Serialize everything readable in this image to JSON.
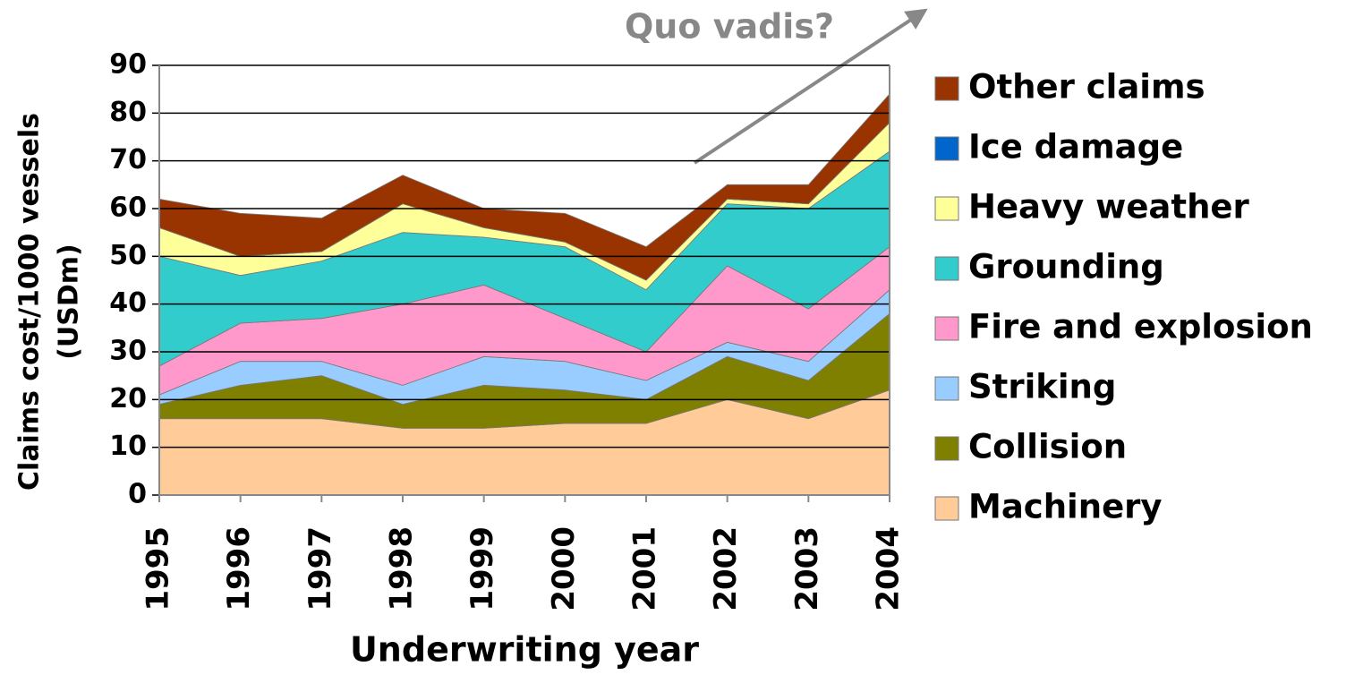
{
  "chart_data": {
    "type": "stacked_area",
    "annotation": "Quo vadis?",
    "y_label": [
      "Claims cost/1000 vessels",
      "(USDm)"
    ],
    "x_label": "Underwriting year",
    "categories": [
      "1995",
      "1996",
      "1997",
      "1998",
      "1999",
      "2000",
      "2001",
      "2002",
      "2003",
      "2004"
    ],
    "ylim": [
      0,
      90
    ],
    "yticks": [
      0,
      10,
      20,
      30,
      40,
      50,
      60,
      70,
      80,
      90
    ],
    "grid": true,
    "legend": "right",
    "series": [
      {
        "name": "Machinery",
        "color": "#ffcc99",
        "values": [
          16,
          16,
          16,
          14,
          14,
          15,
          15,
          20,
          16,
          22
        ]
      },
      {
        "name": "Collision",
        "color": "#808000",
        "values": [
          3,
          7,
          9,
          5,
          9,
          7,
          5,
          9,
          8,
          16
        ]
      },
      {
        "name": "Striking",
        "color": "#99ccff",
        "values": [
          2,
          5,
          3,
          4,
          6,
          6,
          4,
          3,
          4,
          5
        ]
      },
      {
        "name": "Fire and explosion",
        "color": "#ff99cc",
        "values": [
          6,
          8,
          9,
          17,
          15,
          9,
          6,
          16,
          11,
          9
        ]
      },
      {
        "name": "Grounding",
        "color": "#33cccc",
        "values": [
          23,
          10,
          12,
          15,
          10,
          15,
          13,
          13,
          21,
          20
        ]
      },
      {
        "name": "Heavy weather",
        "color": "#ffff99",
        "values": [
          6,
          4,
          2,
          6,
          2,
          1,
          2,
          1,
          1,
          6
        ]
      },
      {
        "name": "Ice damage",
        "color": "#0066cc",
        "values": [
          0,
          0,
          0,
          0,
          0,
          0,
          0,
          0,
          0,
          0
        ]
      },
      {
        "name": "Other claims",
        "color": "#993300",
        "values": [
          6,
          9,
          7,
          6,
          4,
          6,
          7,
          3,
          4,
          6
        ]
      }
    ]
  }
}
